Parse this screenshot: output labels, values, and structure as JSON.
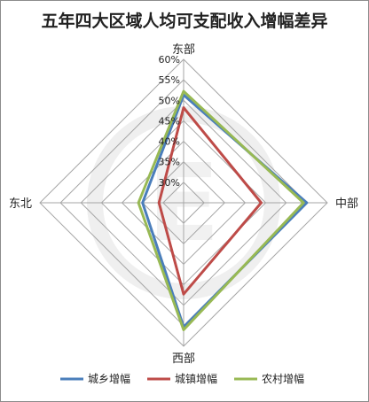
{
  "chart_data": {
    "type": "radar",
    "title": "五年四大区域人均可支配收入增幅差异",
    "categories": [
      "东部",
      "中部",
      "西部",
      "东北"
    ],
    "ticks": [
      "30%",
      "35%",
      "40%",
      "45%",
      "50%",
      "55%",
      "60%"
    ],
    "range": [
      0.25,
      0.6
    ],
    "series": [
      {
        "name": "城乡增幅",
        "color": "#4a7ebb",
        "values": [
          0.513,
          0.55,
          0.553,
          0.35
        ]
      },
      {
        "name": "城镇增幅",
        "color": "#be4b48",
        "values": [
          0.482,
          0.439,
          0.473,
          0.31
        ]
      },
      {
        "name": "农村增幅",
        "color": "#98b954",
        "values": [
          0.522,
          0.542,
          0.56,
          0.36
        ]
      }
    ],
    "legend_position": "bottom",
    "watermark": "E"
  }
}
